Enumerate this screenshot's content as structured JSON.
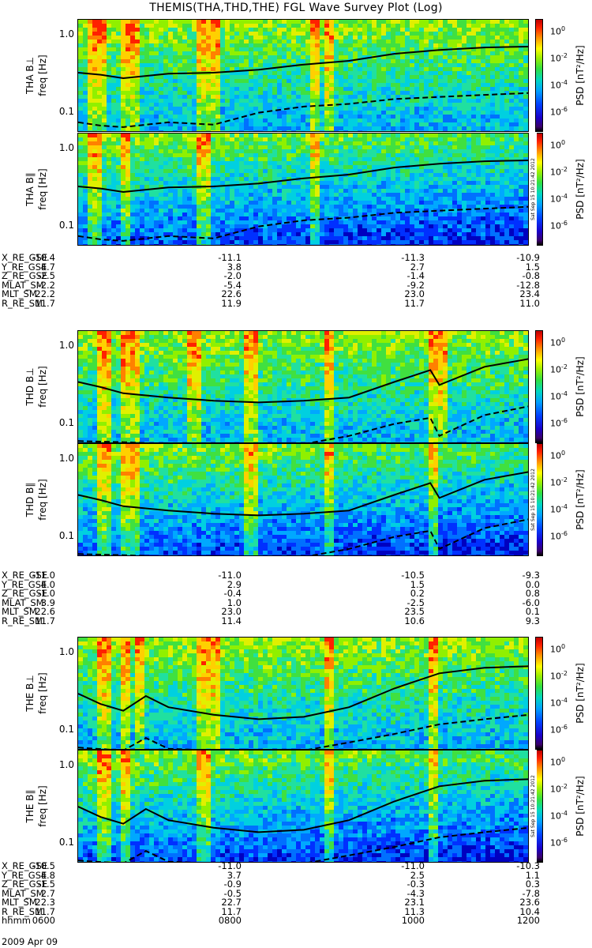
{
  "chart_data": {
    "type": "heatmap",
    "title": "THEMIS(THA,THD,THE) FGL Wave Survey Plot (Log)",
    "date": "2009 Apr 09",
    "ylabel_common": "freq [Hz]",
    "yscale": "log",
    "ylim": [
      0.055,
      1.6
    ],
    "yticks": [
      "1.0",
      "0.1"
    ],
    "xlim_hhmm": [
      "0600",
      "1200"
    ],
    "colorbar": {
      "label": "PSD [nT²/Hz]",
      "scale": "log",
      "tick_exponents": [
        "0",
        "-2",
        "-4",
        "-6"
      ],
      "colors": [
        "#000000",
        "#1a00c8",
        "#00a0ff",
        "#30e040",
        "#ffff00",
        "#ff2000",
        "#c00000"
      ]
    },
    "stamp": "Sat Sep 15 10:21:42 2012",
    "panels": [
      {
        "label": "THA B⊥",
        "probe": "THA"
      },
      {
        "label": "THA B∥",
        "probe": "THA"
      },
      {
        "label": "THD B⊥",
        "probe": "THD"
      },
      {
        "label": "THD B∥",
        "probe": "THD"
      },
      {
        "label": "THE B⊥",
        "probe": "THE"
      },
      {
        "label": "THE B∥",
        "probe": "THE"
      }
    ],
    "ephemeris": [
      {
        "probe": "THA",
        "rows": [
          {
            "name": "X_RE_GSE",
            "values": [
              "-10.4",
              "-11.1",
              "-11.3",
              "-10.9"
            ]
          },
          {
            "name": "Y_RE_GSE",
            "values": [
              "4.7",
              "3.8",
              "2.7",
              "1.5"
            ]
          },
          {
            "name": "Z_RE_GSE",
            "values": [
              "-2.5",
              "-2.0",
              "-1.4",
              "-0.8"
            ]
          },
          {
            "name": "MLAT_SM",
            "values": [
              "-2.2",
              "-5.4",
              "-9.2",
              "-12.8"
            ]
          },
          {
            "name": "MLT_SM",
            "values": [
              "22.2",
              "22.6",
              "23.0",
              "23.4"
            ]
          },
          {
            "name": "R_RE_SM",
            "values": [
              "11.7",
              "11.9",
              "11.7",
              "11.0"
            ]
          }
        ]
      },
      {
        "probe": "THD",
        "rows": [
          {
            "name": "X_RE_GSE",
            "values": [
              "-11.0",
              "-11.0",
              "-10.5",
              "-9.3"
            ]
          },
          {
            "name": "Y_RE_GSE",
            "values": [
              "4.0",
              "2.9",
              "1.5",
              "0.0"
            ]
          },
          {
            "name": "Z_RE_GSE",
            "values": [
              "-1.0",
              "-0.4",
              "0.2",
              "0.8"
            ]
          },
          {
            "name": "MLAT_SM",
            "values": [
              "3.9",
              "1.0",
              "-2.5",
              "-6.0"
            ]
          },
          {
            "name": "MLT_SM",
            "values": [
              "22.6",
              "23.0",
              "23.5",
              "0.1"
            ]
          },
          {
            "name": "R_RE_SM",
            "values": [
              "11.7",
              "11.4",
              "10.6",
              "9.3"
            ]
          }
        ]
      },
      {
        "probe": "THE",
        "rows": [
          {
            "name": "X_RE_GSE",
            "values": [
              "-10.5",
              "-11.0",
              "-11.0",
              "-10.3"
            ]
          },
          {
            "name": "Y_RE_GSE",
            "values": [
              "4.8",
              "3.7",
              "2.5",
              "1.1"
            ]
          },
          {
            "name": "Z_RE_GSE",
            "values": [
              "-1.5",
              "-0.9",
              "-0.3",
              "0.3"
            ]
          },
          {
            "name": "MLAT_SM",
            "values": [
              "2.7",
              "-0.5",
              "-4.3",
              "-7.8"
            ]
          },
          {
            "name": "MLT_SM",
            "values": [
              "22.3",
              "22.7",
              "23.1",
              "23.6"
            ]
          },
          {
            "name": "R_RE_SM",
            "values": [
              "11.7",
              "11.7",
              "11.3",
              "10.4"
            ]
          },
          {
            "name": "hhmm",
            "values": [
              "0600",
              "0800",
              "1000",
              "1200"
            ]
          }
        ]
      }
    ],
    "curves": {
      "description_units": "freq in Hz vs fraction of 0600-1200 interval",
      "solid_THA": [
        [
          0.0,
          0.33
        ],
        [
          0.05,
          0.31
        ],
        [
          0.1,
          0.28
        ],
        [
          0.2,
          0.32
        ],
        [
          0.3,
          0.33
        ],
        [
          0.4,
          0.36
        ],
        [
          0.5,
          0.42
        ],
        [
          0.6,
          0.47
        ],
        [
          0.7,
          0.58
        ],
        [
          0.8,
          0.65
        ],
        [
          0.9,
          0.7
        ],
        [
          1.0,
          0.72
        ]
      ],
      "dashed_THA": [
        [
          0.0,
          0.075
        ],
        [
          0.05,
          0.068
        ],
        [
          0.1,
          0.065
        ],
        [
          0.2,
          0.075
        ],
        [
          0.3,
          0.07
        ],
        [
          0.4,
          0.1
        ],
        [
          0.5,
          0.12
        ],
        [
          0.6,
          0.13
        ],
        [
          0.7,
          0.15
        ],
        [
          0.8,
          0.16
        ],
        [
          0.9,
          0.17
        ],
        [
          1.0,
          0.18
        ]
      ],
      "solid_THD": [
        [
          0.0,
          0.35
        ],
        [
          0.05,
          0.3
        ],
        [
          0.1,
          0.25
        ],
        [
          0.2,
          0.22
        ],
        [
          0.3,
          0.2
        ],
        [
          0.4,
          0.19
        ],
        [
          0.5,
          0.2
        ],
        [
          0.6,
          0.22
        ],
        [
          0.7,
          0.35
        ],
        [
          0.78,
          0.5
        ],
        [
          0.8,
          0.32
        ],
        [
          0.9,
          0.55
        ],
        [
          1.0,
          0.7
        ]
      ],
      "dashed_THD": [
        [
          0.0,
          0.06
        ],
        [
          0.1,
          0.058
        ],
        [
          0.2,
          0.055
        ],
        [
          0.3,
          0.055
        ],
        [
          0.5,
          0.055
        ],
        [
          0.6,
          0.07
        ],
        [
          0.7,
          0.1
        ],
        [
          0.78,
          0.12
        ],
        [
          0.8,
          0.07
        ],
        [
          0.9,
          0.13
        ],
        [
          1.0,
          0.17
        ]
      ],
      "solid_THE": [
        [
          0.0,
          0.3
        ],
        [
          0.05,
          0.22
        ],
        [
          0.1,
          0.18
        ],
        [
          0.15,
          0.28
        ],
        [
          0.2,
          0.2
        ],
        [
          0.3,
          0.16
        ],
        [
          0.4,
          0.14
        ],
        [
          0.5,
          0.15
        ],
        [
          0.6,
          0.2
        ],
        [
          0.7,
          0.35
        ],
        [
          0.8,
          0.55
        ],
        [
          0.9,
          0.65
        ],
        [
          1.0,
          0.68
        ]
      ],
      "dashed_THE": [
        [
          0.0,
          0.06
        ],
        [
          0.1,
          0.055
        ],
        [
          0.15,
          0.08
        ],
        [
          0.2,
          0.058
        ],
        [
          0.3,
          0.055
        ],
        [
          0.5,
          0.055
        ],
        [
          0.6,
          0.07
        ],
        [
          0.7,
          0.09
        ],
        [
          0.8,
          0.12
        ],
        [
          0.9,
          0.14
        ],
        [
          1.0,
          0.16
        ]
      ]
    }
  }
}
